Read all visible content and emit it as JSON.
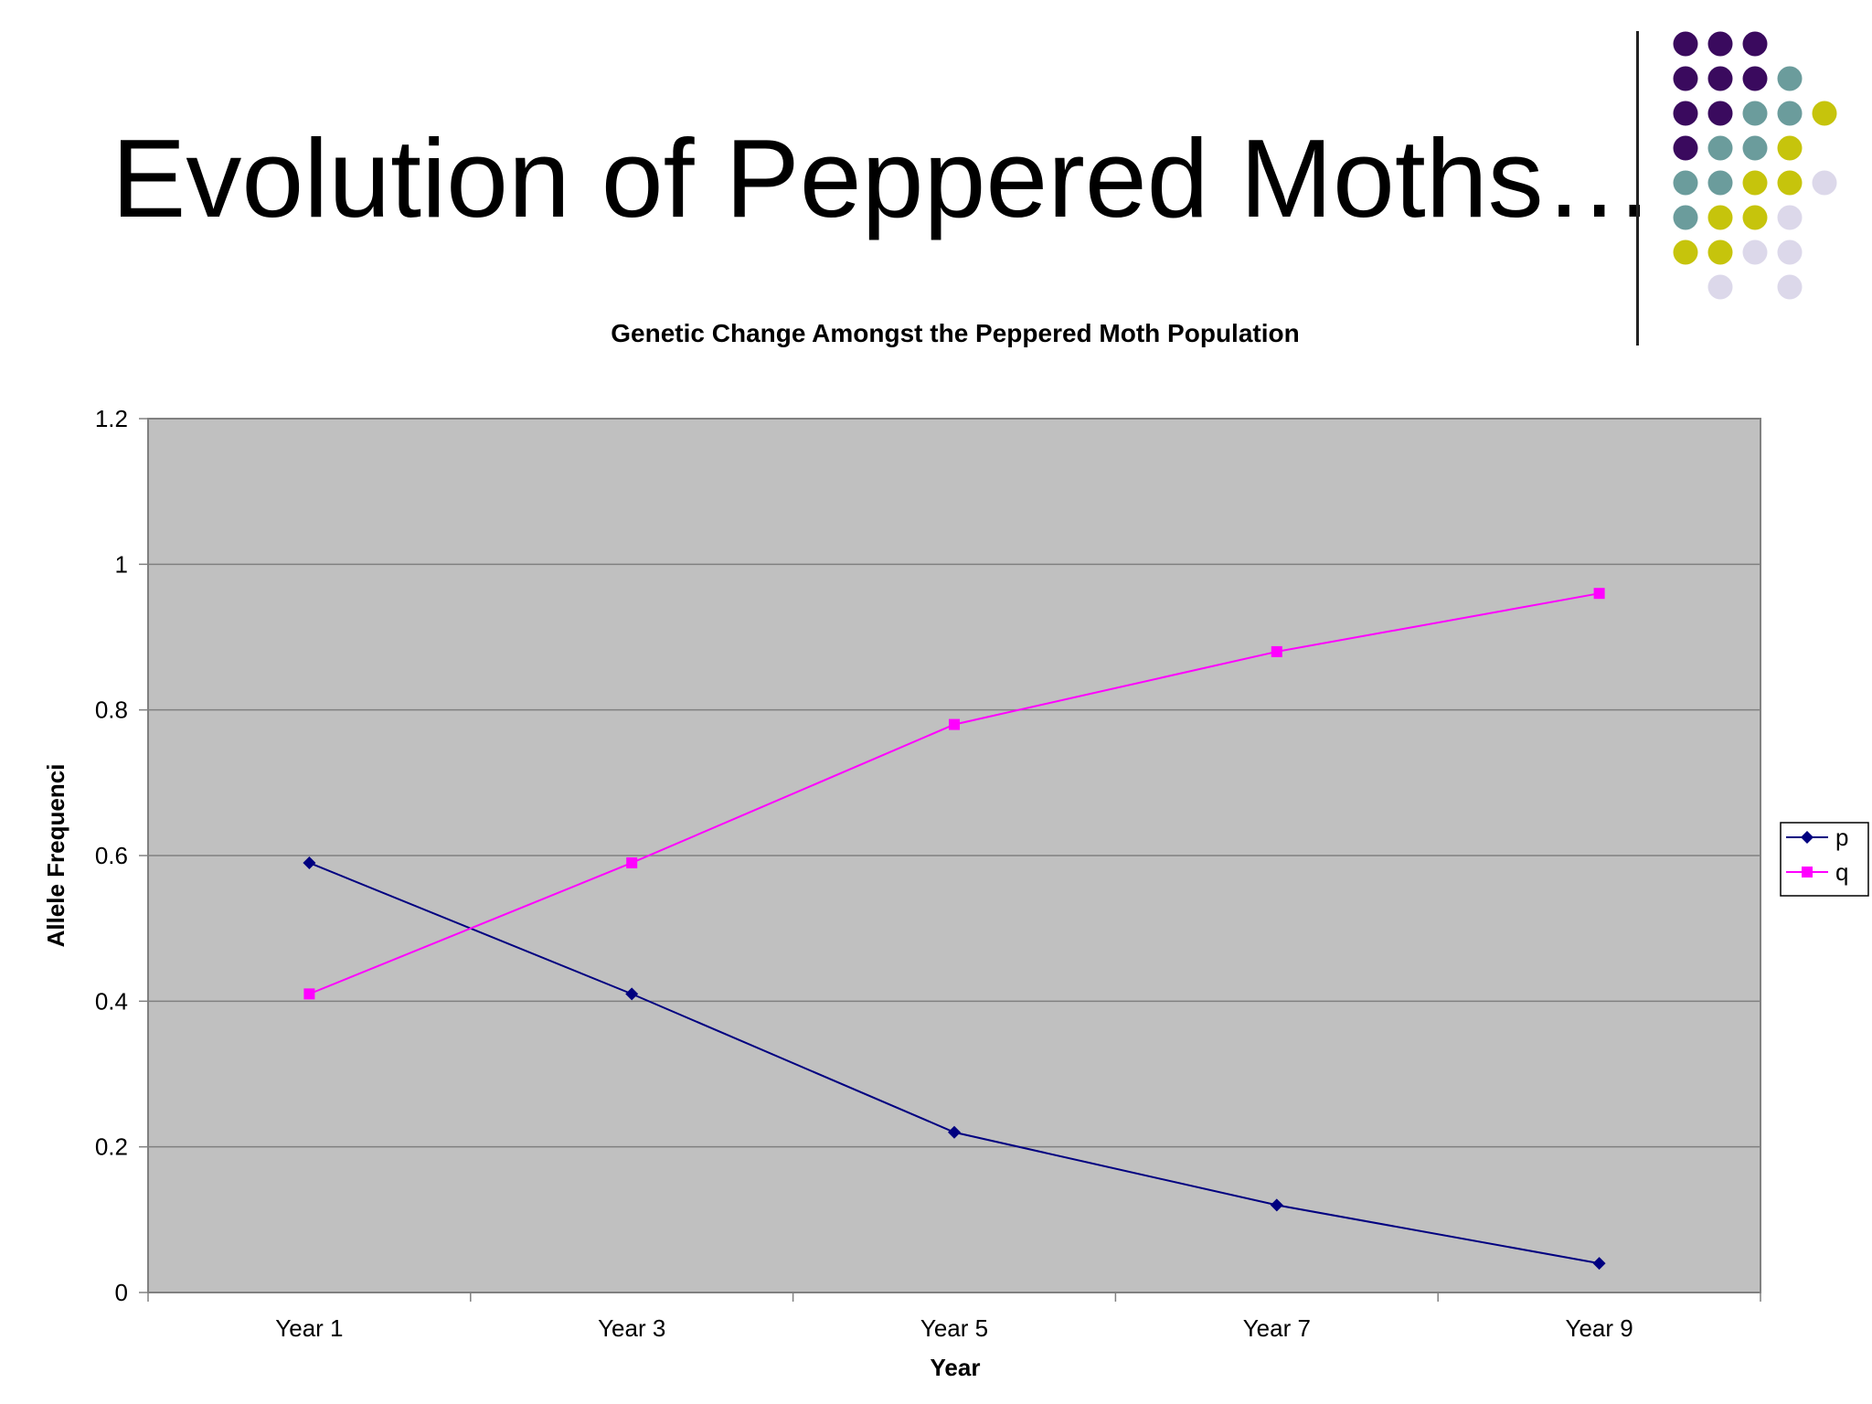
{
  "slide": {
    "title": "Evolution of Peppered Moths…",
    "decoration_colors": {
      "purple": "#3a0a5e",
      "teal": "#6b9c9c",
      "olive": "#c6c40c",
      "lavender": "#dcd8ea"
    }
  },
  "chart_data": {
    "type": "line",
    "title": "Genetic Change Amongst the Peppered Moth Population",
    "xlabel": "Year",
    "ylabel": "Allele Frequenci",
    "categories": [
      "Year 1",
      "Year 3",
      "Year 5",
      "Year 7",
      "Year 9"
    ],
    "series": [
      {
        "name": "p",
        "values": [
          0.59,
          0.41,
          0.22,
          0.12,
          0.04
        ],
        "color": "#000080",
        "marker": "diamond"
      },
      {
        "name": "q",
        "values": [
          0.41,
          0.59,
          0.78,
          0.88,
          0.96
        ],
        "color": "#ff00ff",
        "marker": "square"
      }
    ],
    "ylim": [
      0,
      1.2
    ],
    "yticks": [
      "0",
      "0.2",
      "0.4",
      "0.6",
      "0.8",
      "1",
      "1.2"
    ],
    "grid": true,
    "plot_background": "#c0c0c0",
    "legend": "right"
  }
}
